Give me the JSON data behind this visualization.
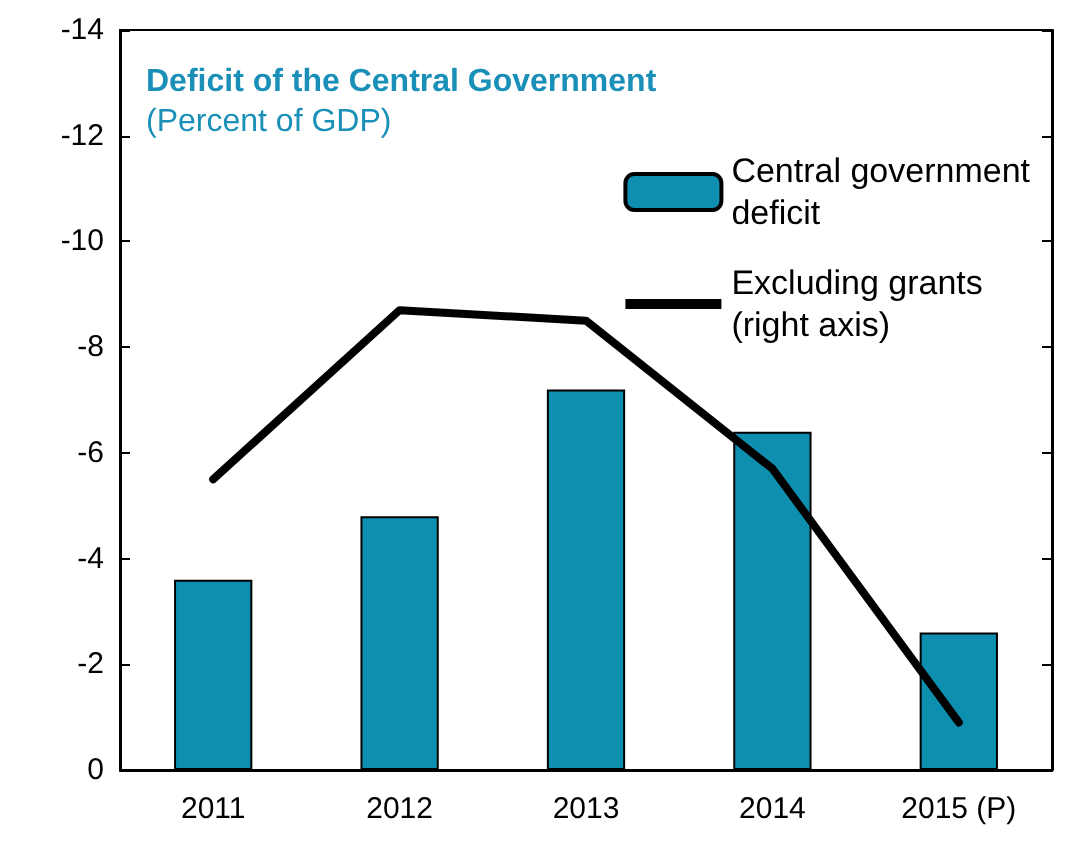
{
  "chart_data": {
    "type": "bar",
    "title": "Deficit of the Central Government",
    "subtitle": "(Percent of GDP)",
    "categories": [
      "2011",
      "2012",
      "2013",
      "2014",
      "2015 (P)"
    ],
    "series": [
      {
        "name": "Central government\ndeficit",
        "color": "#0e8fb0",
        "values": [
          -3.6,
          -4.8,
          -7.2,
          -6.4,
          -2.6
        ]
      },
      {
        "name": "Excluding grants\n(right axis)",
        "type": "line",
        "color": "#000000",
        "values": [
          -5.5,
          -8.7,
          -8.5,
          -5.7,
          -0.9
        ]
      }
    ],
    "ylim": [
      0,
      -14
    ],
    "yticks": [
      0,
      -2,
      -4,
      -6,
      -8,
      -10,
      -12,
      -14
    ],
    "grid": false,
    "legend": "top right",
    "marker": "none",
    "line_style": "solid"
  }
}
